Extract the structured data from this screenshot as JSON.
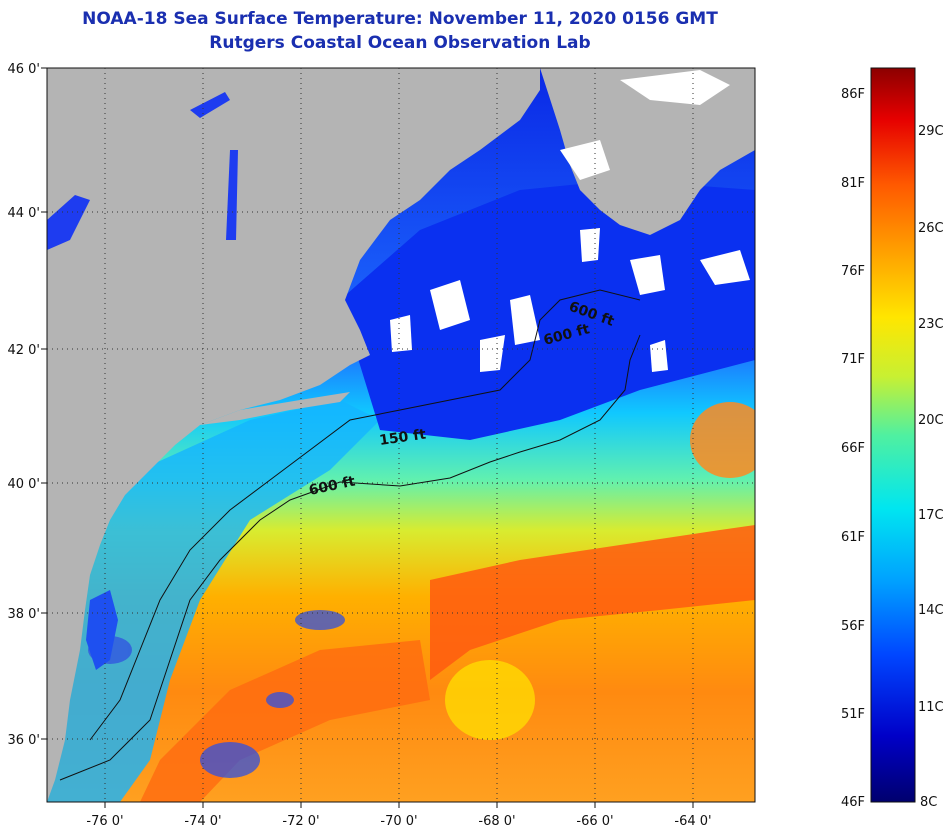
{
  "title": {
    "line1": "NOAA-18 Sea Surface Temperature:  November 11, 2020 0156 GMT",
    "line2": "Rutgers Coastal Ocean Observation Lab"
  },
  "axes": {
    "lat_labels": [
      "46 0'",
      "44 0'",
      "42 0'",
      "40 0'",
      "38 0'",
      "36 0'"
    ],
    "lon_labels": [
      "-76 0'",
      "-74 0'",
      "-72 0'",
      "-70 0'",
      "-68 0'",
      "-66 0'",
      "-64 0'"
    ]
  },
  "contours": {
    "labels": [
      "600 ft",
      "150 ft",
      "600 ft",
      "600 ft"
    ]
  },
  "colorbar": {
    "fahrenheit": [
      "86F",
      "81F",
      "76F",
      "71F",
      "66F",
      "61F",
      "56F",
      "51F",
      "46F"
    ],
    "celsius": [
      "29C",
      "26C",
      "23C",
      "20C",
      "17C",
      "14C",
      "11C",
      "8C"
    ],
    "colors": [
      "#00006e",
      "#0000c8",
      "#0046ff",
      "#00a0ff",
      "#00e6f0",
      "#50f0a0",
      "#c8f032",
      "#ffe600",
      "#ffa000",
      "#ff5a00",
      "#e60000",
      "#8c0000"
    ]
  },
  "colors": {
    "land": "#b4b4b4",
    "cloud": "#ffffff",
    "title": "#1a2fb0"
  }
}
